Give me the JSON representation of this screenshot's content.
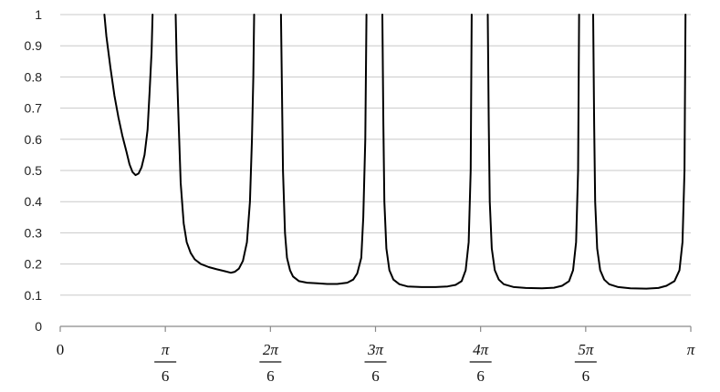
{
  "chart_data": {
    "type": "line",
    "title": "",
    "xlabel": "",
    "ylabel": "",
    "ylim": [
      0,
      1
    ],
    "xlim": [
      0,
      3.14159
    ],
    "grid": "horizontal",
    "y_ticks": [
      "0",
      "0.1",
      "0.2",
      "0.3",
      "0.4",
      "0.5",
      "0.6",
      "0.7",
      "0.8",
      "0.9",
      "1"
    ],
    "x_ticks": [
      {
        "value": 0,
        "label": "0"
      },
      {
        "value": 0.5236,
        "label": "π/6",
        "num": "π",
        "den": "6"
      },
      {
        "value": 1.0472,
        "label": "2π/6",
        "num": "2π",
        "den": "6"
      },
      {
        "value": 1.5708,
        "label": "3π/6",
        "num": "3π",
        "den": "6"
      },
      {
        "value": 2.0944,
        "label": "4π/6",
        "num": "4π",
        "den": "6"
      },
      {
        "value": 2.618,
        "label": "5π/6",
        "num": "5π",
        "den": "6"
      },
      {
        "value": 3.1416,
        "label": "π"
      }
    ],
    "series": [
      {
        "segments": [
          [
            [
              0.22,
              1.0
            ],
            [
              0.23,
              0.93
            ],
            [
              0.25,
              0.83
            ],
            [
              0.27,
              0.74
            ],
            [
              0.29,
              0.67
            ],
            [
              0.31,
              0.61
            ],
            [
              0.33,
              0.56
            ],
            [
              0.345,
              0.52
            ],
            [
              0.36,
              0.495
            ],
            [
              0.375,
              0.485
            ],
            [
              0.39,
              0.49
            ],
            [
              0.405,
              0.51
            ],
            [
              0.42,
              0.55
            ],
            [
              0.435,
              0.63
            ],
            [
              0.445,
              0.75
            ],
            [
              0.455,
              0.88
            ],
            [
              0.46,
              1.0
            ]
          ],
          [
            [
              0.575,
              1.0
            ],
            [
              0.58,
              0.85
            ],
            [
              0.59,
              0.65
            ],
            [
              0.6,
              0.46
            ],
            [
              0.615,
              0.33
            ],
            [
              0.63,
              0.27
            ],
            [
              0.65,
              0.235
            ],
            [
              0.67,
              0.215
            ],
            [
              0.7,
              0.2
            ],
            [
              0.74,
              0.19
            ],
            [
              0.78,
              0.183
            ],
            [
              0.82,
              0.177
            ],
            [
              0.85,
              0.172
            ],
            [
              0.87,
              0.175
            ],
            [
              0.89,
              0.185
            ],
            [
              0.91,
              0.21
            ],
            [
              0.93,
              0.27
            ],
            [
              0.945,
              0.4
            ],
            [
              0.955,
              0.6
            ],
            [
              0.962,
              0.8
            ],
            [
              0.966,
              1.0
            ]
          ],
          [
            [
              1.1,
              1.0
            ],
            [
              1.105,
              0.75
            ],
            [
              1.11,
              0.5
            ],
            [
              1.12,
              0.3
            ],
            [
              1.13,
              0.22
            ],
            [
              1.145,
              0.18
            ],
            [
              1.16,
              0.16
            ],
            [
              1.19,
              0.145
            ],
            [
              1.23,
              0.14
            ],
            [
              1.28,
              0.138
            ],
            [
              1.33,
              0.136
            ],
            [
              1.38,
              0.136
            ],
            [
              1.43,
              0.14
            ],
            [
              1.46,
              0.15
            ],
            [
              1.48,
              0.17
            ],
            [
              1.5,
              0.22
            ],
            [
              1.51,
              0.35
            ],
            [
              1.52,
              0.6
            ],
            [
              1.526,
              1.0
            ]
          ],
          [
            [
              1.605,
              1.0
            ],
            [
              1.61,
              0.65
            ],
            [
              1.615,
              0.4
            ],
            [
              1.625,
              0.25
            ],
            [
              1.64,
              0.18
            ],
            [
              1.66,
              0.15
            ],
            [
              1.69,
              0.135
            ],
            [
              1.73,
              0.128
            ],
            [
              1.8,
              0.126
            ],
            [
              1.87,
              0.126
            ],
            [
              1.93,
              0.128
            ],
            [
              1.97,
              0.133
            ],
            [
              2.0,
              0.145
            ],
            [
              2.02,
              0.18
            ],
            [
              2.035,
              0.27
            ],
            [
              2.045,
              0.5
            ],
            [
              2.05,
              1.0
            ]
          ],
          [
            [
              2.13,
              1.0
            ],
            [
              2.135,
              0.65
            ],
            [
              2.14,
              0.4
            ],
            [
              2.15,
              0.25
            ],
            [
              2.165,
              0.18
            ],
            [
              2.185,
              0.15
            ],
            [
              2.21,
              0.135
            ],
            [
              2.26,
              0.126
            ],
            [
              2.32,
              0.123
            ],
            [
              2.4,
              0.122
            ],
            [
              2.46,
              0.124
            ],
            [
              2.5,
              0.13
            ],
            [
              2.535,
              0.145
            ],
            [
              2.555,
              0.18
            ],
            [
              2.57,
              0.27
            ],
            [
              2.58,
              0.5
            ],
            [
              2.585,
              1.0
            ]
          ],
          [
            [
              2.655,
              1.0
            ],
            [
              2.66,
              0.65
            ],
            [
              2.665,
              0.4
            ],
            [
              2.675,
              0.25
            ],
            [
              2.69,
              0.18
            ],
            [
              2.71,
              0.15
            ],
            [
              2.735,
              0.135
            ],
            [
              2.78,
              0.126
            ],
            [
              2.84,
              0.122
            ],
            [
              2.92,
              0.121
            ],
            [
              2.98,
              0.123
            ],
            [
              3.02,
              0.13
            ],
            [
              3.06,
              0.145
            ],
            [
              3.085,
              0.18
            ],
            [
              3.1,
              0.27
            ],
            [
              3.11,
              0.5
            ],
            [
              3.115,
              1.0
            ]
          ]
        ]
      }
    ]
  }
}
